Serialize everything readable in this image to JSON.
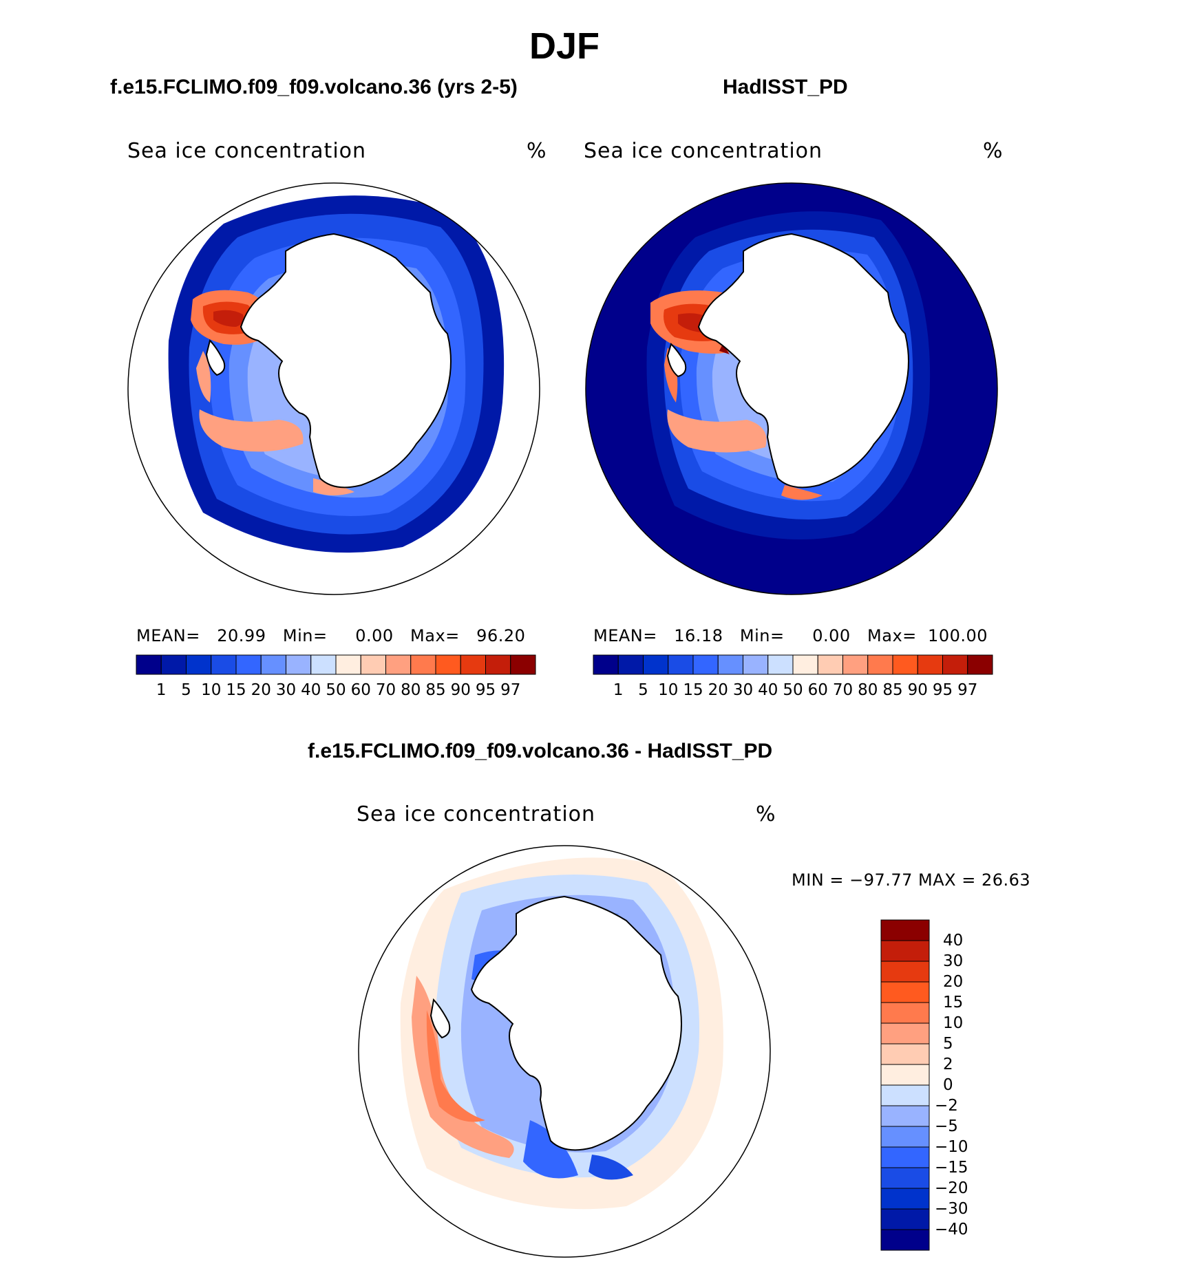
{
  "figure": {
    "season_title": "DJF"
  },
  "panels": [
    {
      "id": "model",
      "title": "f.e15.FCLIMO.f09_f09.volcano.36 (yrs 2-5)",
      "variable": "Sea ice concentration",
      "units": "%",
      "stats": {
        "mean_label": "MEAN=",
        "mean": "20.99",
        "min_label": "Min=",
        "min": "0.00",
        "max_label": "Max=",
        "max": "96.20"
      }
    },
    {
      "id": "obs",
      "title": "HadISST_PD",
      "variable": "Sea ice concentration",
      "units": "%",
      "stats": {
        "mean_label": "MEAN=",
        "mean": "16.18",
        "min_label": "Min=",
        "min": "0.00",
        "max_label": "Max=",
        "max": "100.00"
      }
    },
    {
      "id": "diff",
      "title": "f.e15.FCLIMO.f09_f09.volcano.36 - HadISST_PD",
      "variable": "Sea ice concentration",
      "units": "%",
      "minmax": "MIN = −97.77 MAX =   26.63"
    }
  ],
  "colorbars": {
    "concentration": {
      "levels": [
        "1",
        "5",
        "10",
        "15",
        "20",
        "30",
        "40",
        "50",
        "60",
        "70",
        "80",
        "85",
        "90",
        "95",
        "97"
      ],
      "colors": [
        "#00008b",
        "#0019a8",
        "#0033cc",
        "#1a4ce6",
        "#3366ff",
        "#6690ff",
        "#99b3ff",
        "#cce0ff",
        "#ffeee0",
        "#ffccb3",
        "#ffa080",
        "#ff7a4d",
        "#ff5a1f",
        "#e63a10",
        "#c41e0a",
        "#8b0000"
      ]
    },
    "difference": {
      "levels": [
        "40",
        "30",
        "20",
        "15",
        "10",
        "5",
        "2",
        "0",
        "−2",
        "−5",
        "−10",
        "−15",
        "−20",
        "−30",
        "−40"
      ],
      "colors": [
        "#8b0000",
        "#c41e0a",
        "#e63a10",
        "#ff5a1f",
        "#ff7a4d",
        "#ffa080",
        "#ffccb3",
        "#ffeee0",
        "#cce0ff",
        "#99b3ff",
        "#6690ff",
        "#3366ff",
        "#1a4ce6",
        "#0033cc",
        "#0019a8",
        "#00008b"
      ]
    }
  }
}
